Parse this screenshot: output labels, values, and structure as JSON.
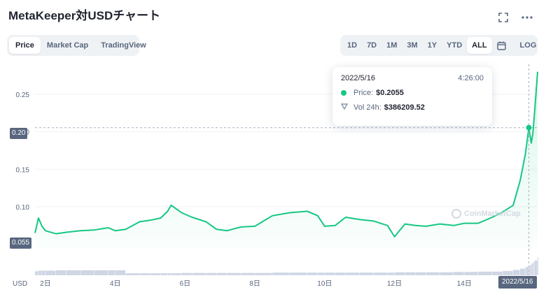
{
  "title": "MetaKeeper対USDチャート",
  "header_icons": {
    "fullscreen": "fullscreen-icon",
    "more": "more-icon",
    "more_glyph": "⋯",
    "fullscreen_glyph": "⛶"
  },
  "view_tabs": [
    {
      "label": "Price",
      "active": true
    },
    {
      "label": "Market Cap",
      "active": false
    },
    {
      "label": "TradingView",
      "active": false
    }
  ],
  "range_tabs": [
    {
      "label": "1D",
      "active": false
    },
    {
      "label": "7D",
      "active": false
    },
    {
      "label": "1M",
      "active": false
    },
    {
      "label": "3M",
      "active": false
    },
    {
      "label": "1Y",
      "active": false
    },
    {
      "label": "YTD",
      "active": false
    },
    {
      "label": "ALL",
      "active": true
    }
  ],
  "calendar_icon": "calendar-icon",
  "log_label": "LOG",
  "tooltip": {
    "date": "2022/5/16",
    "time": "4:26:00",
    "price_label": "Price:",
    "price_value": "$0.2055",
    "vol_label": "Vol 24h:",
    "vol_value": "$386209.52"
  },
  "current_price_badge": "0.055",
  "hover_price_badge": "0.20",
  "hover_date_badge": "2022/5/16",
  "watermark": "CoinMarketCap",
  "colors": {
    "line": "#16c784",
    "accent": "#16c784",
    "axis_text": "#58667e",
    "volume": "#cfd6e4"
  },
  "chart_data": {
    "type": "area",
    "y_unit": "USD",
    "ylim": [
      0.045,
      0.29
    ],
    "y_ticks": [
      0.1,
      0.15,
      0.2,
      0.25
    ],
    "y_tick_labels": [
      "0.10",
      "0.15",
      "0.20",
      "0.25"
    ],
    "x_tick_labels": [
      "2日",
      "4日",
      "6日",
      "8日",
      "10日",
      "12日",
      "14日"
    ],
    "x_tick_days": [
      2,
      4,
      6,
      8,
      10,
      12,
      14
    ],
    "x_range_days": [
      1.7,
      16.1
    ],
    "grid": true,
    "x_days": [
      1.7,
      1.8,
      1.9,
      2.0,
      2.3,
      2.6,
      3.0,
      3.4,
      3.8,
      4.0,
      4.3,
      4.7,
      5.0,
      5.3,
      5.5,
      5.6,
      5.9,
      6.2,
      6.6,
      6.9,
      7.2,
      7.6,
      8.0,
      8.5,
      9.0,
      9.5,
      9.8,
      10.0,
      10.3,
      10.6,
      11.0,
      11.4,
      11.8,
      12.0,
      12.3,
      12.6,
      12.9,
      13.3,
      13.7,
      14.0,
      14.4,
      14.8,
      15.1,
      15.4,
      15.6,
      15.75,
      15.85,
      15.92,
      15.97,
      16.02,
      16.1
    ],
    "price": [
      0.065,
      0.085,
      0.074,
      0.068,
      0.064,
      0.066,
      0.068,
      0.069,
      0.072,
      0.068,
      0.07,
      0.08,
      0.082,
      0.085,
      0.094,
      0.102,
      0.092,
      0.086,
      0.08,
      0.07,
      0.068,
      0.073,
      0.074,
      0.088,
      0.092,
      0.094,
      0.088,
      0.074,
      0.075,
      0.086,
      0.083,
      0.081,
      0.075,
      0.06,
      0.077,
      0.075,
      0.074,
      0.077,
      0.075,
      0.078,
      0.078,
      0.086,
      0.093,
      0.102,
      0.135,
      0.17,
      0.205,
      0.185,
      0.2,
      0.23,
      0.28
    ],
    "volume": [
      12,
      14,
      14,
      14,
      15,
      15,
      15,
      15,
      15,
      15,
      6,
      6,
      6,
      6,
      6,
      6,
      7,
      7,
      7,
      7,
      7,
      7,
      7,
      8,
      8,
      8,
      8,
      8,
      8,
      8,
      8,
      8,
      8,
      9,
      9,
      9,
      9,
      9,
      10,
      10,
      11,
      11,
      13,
      16,
      20,
      25,
      30,
      35,
      40,
      45,
      55
    ]
  }
}
